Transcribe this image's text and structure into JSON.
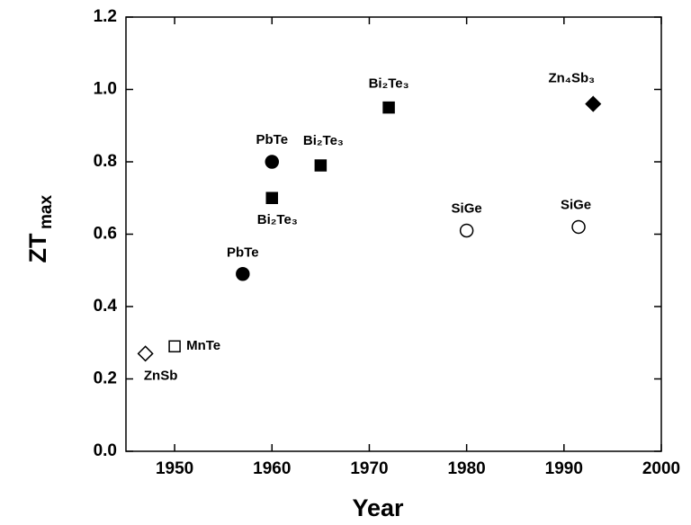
{
  "chart_data": {
    "type": "scatter",
    "xlabel": "Year",
    "ylabel": "ZT",
    "ylabel_subscript": "max",
    "xlim": [
      1945,
      2000
    ],
    "ylim": [
      0,
      1.2
    ],
    "xticks": [
      1950,
      1960,
      1970,
      1980,
      1990,
      2000
    ],
    "yticks": [
      {
        "value": 0,
        "label": "0.0"
      },
      0.2,
      0.4,
      0.6,
      0.8,
      {
        "value": 1,
        "label": "1.0"
      },
      1.2
    ],
    "color": "#000000",
    "points": [
      {
        "x": 1947,
        "y": 0.27,
        "label": "ZnSb",
        "marker": "diamond",
        "filled": false
      },
      {
        "x": 1950,
        "y": 0.29,
        "label": "MnTe",
        "marker": "square",
        "filled": false
      },
      {
        "x": 1957,
        "y": 0.49,
        "label": "PbTe",
        "marker": "circle",
        "filled": true
      },
      {
        "x": 1960,
        "y": 0.8,
        "label": "PbTe",
        "marker": "circle",
        "filled": true
      },
      {
        "x": 1960,
        "y": 0.7,
        "label": "Bi₂Te₃",
        "marker": "square",
        "filled": true
      },
      {
        "x": 1965,
        "y": 0.79,
        "label": "Bi₂Te₃",
        "marker": "square",
        "filled": true
      },
      {
        "x": 1972,
        "y": 0.95,
        "label": "Bi₂Te₃",
        "marker": "square",
        "filled": true
      },
      {
        "x": 1993,
        "y": 0.96,
        "label": "Zn₄Sb₃",
        "marker": "diamond",
        "filled": true
      },
      {
        "x": 1980,
        "y": 0.61,
        "label": "SiGe",
        "marker": "circle",
        "filled": false
      },
      {
        "x": 1991.5,
        "y": 0.62,
        "label": "SiGe",
        "marker": "circle",
        "filled": false
      }
    ]
  }
}
